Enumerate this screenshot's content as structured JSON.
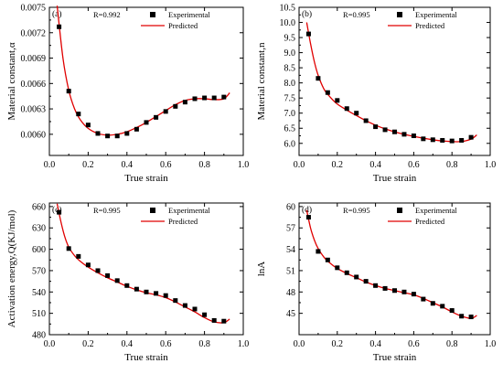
{
  "chart_data": [
    {
      "id": "a",
      "type": "scatter",
      "panel_label": "(a)",
      "r_text": "R=0.992",
      "xlabel": "True strain",
      "ylabel": "Material constant,α",
      "xlim": [
        0.0,
        1.0
      ],
      "ylim": [
        0.00575,
        0.0075
      ],
      "xticks": [
        "0.0",
        "0.2",
        "0.4",
        "0.6",
        "0.8",
        "1.0"
      ],
      "xtick_values": [
        0.0,
        0.2,
        0.4,
        0.6,
        0.8,
        1.0
      ],
      "yticks": [
        "0.0060",
        "0.0063",
        "0.0066",
        "0.0069",
        "0.0072",
        "0.0075"
      ],
      "ytick_values": [
        0.006,
        0.0063,
        0.0066,
        0.0069,
        0.0072,
        0.0075
      ],
      "legend": {
        "experimental": "Experimental",
        "predicted": "Predicted",
        "position": "top-right"
      },
      "series": [
        {
          "name": "Experimental",
          "x": [
            0.05,
            0.1,
            0.15,
            0.2,
            0.25,
            0.3,
            0.35,
            0.4,
            0.45,
            0.5,
            0.55,
            0.6,
            0.65,
            0.7,
            0.75,
            0.8,
            0.85,
            0.9
          ],
          "y": [
            0.00727,
            0.00651,
            0.00624,
            0.00611,
            0.00601,
            0.00598,
            0.00598,
            0.00601,
            0.00606,
            0.00614,
            0.0062,
            0.00627,
            0.00633,
            0.00638,
            0.00642,
            0.00643,
            0.00643,
            0.00644
          ]
        },
        {
          "name": "Predicted",
          "x": [
            0.04,
            0.07,
            0.1,
            0.13,
            0.16,
            0.2,
            0.25,
            0.3,
            0.35,
            0.4,
            0.45,
            0.5,
            0.55,
            0.6,
            0.65,
            0.7,
            0.75,
            0.8,
            0.85,
            0.9,
            0.93
          ],
          "y": [
            0.00752,
            0.0069,
            0.00652,
            0.0063,
            0.00617,
            0.00607,
            0.00601,
            0.00599,
            0.006,
            0.00603,
            0.00608,
            0.00614,
            0.00621,
            0.00628,
            0.00635,
            0.0064,
            0.00642,
            0.00642,
            0.00641,
            0.00642,
            0.00649
          ]
        }
      ]
    },
    {
      "id": "b",
      "type": "scatter",
      "panel_label": "(b)",
      "r_text": "R=0.995",
      "xlabel": "True strain",
      "ylabel": "Material constant,n",
      "xlim": [
        0.0,
        1.0
      ],
      "ylim": [
        5.6,
        10.5
      ],
      "xticks": [
        "0.0",
        "0.2",
        "0.4",
        "0.6",
        "0.8",
        "1.0"
      ],
      "xtick_values": [
        0.0,
        0.2,
        0.4,
        0.6,
        0.8,
        1.0
      ],
      "yticks": [
        "6.0",
        "6.5",
        "7.0",
        "7.5",
        "8.0",
        "8.5",
        "9.0",
        "9.5",
        "10.0",
        "10.5"
      ],
      "ytick_values": [
        6.0,
        6.5,
        7.0,
        7.5,
        8.0,
        8.5,
        9.0,
        9.5,
        10.0,
        10.5
      ],
      "legend": {
        "experimental": "Experimental",
        "predicted": "Predicted",
        "position": "top-right"
      },
      "series": [
        {
          "name": "Experimental",
          "x": [
            0.05,
            0.1,
            0.15,
            0.2,
            0.25,
            0.3,
            0.35,
            0.4,
            0.45,
            0.5,
            0.55,
            0.6,
            0.65,
            0.7,
            0.75,
            0.8,
            0.85,
            0.9
          ],
          "y": [
            9.62,
            8.15,
            7.68,
            7.42,
            7.15,
            7.0,
            6.75,
            6.55,
            6.45,
            6.38,
            6.3,
            6.25,
            6.15,
            6.12,
            6.1,
            6.08,
            6.1,
            6.2
          ]
        },
        {
          "name": "Predicted",
          "x": [
            0.04,
            0.06,
            0.08,
            0.1,
            0.13,
            0.16,
            0.2,
            0.25,
            0.3,
            0.35,
            0.4,
            0.45,
            0.5,
            0.55,
            0.6,
            0.65,
            0.7,
            0.75,
            0.8,
            0.85,
            0.9,
            0.93
          ],
          "y": [
            10.0,
            9.3,
            8.7,
            8.25,
            7.8,
            7.55,
            7.3,
            7.1,
            6.92,
            6.75,
            6.6,
            6.48,
            6.38,
            6.3,
            6.23,
            6.17,
            6.12,
            6.08,
            6.06,
            6.06,
            6.14,
            6.28
          ]
        }
      ]
    },
    {
      "id": "c",
      "type": "scatter",
      "panel_label": "(c)",
      "r_text": "R=0.995",
      "xlabel": "True strain",
      "ylabel": "Activation energy,Q(KJ/mol)",
      "xlim": [
        0.0,
        1.0
      ],
      "ylim": [
        480,
        665
      ],
      "xticks": [
        "0.0",
        "0.2",
        "0.4",
        "0.6",
        "0.8",
        "1.0"
      ],
      "xtick_values": [
        0.0,
        0.2,
        0.4,
        0.6,
        0.8,
        1.0
      ],
      "yticks": [
        "480",
        "510",
        "540",
        "570",
        "600",
        "630",
        "660"
      ],
      "ytick_values": [
        480,
        510,
        540,
        570,
        600,
        630,
        660
      ],
      "legend": {
        "experimental": "Experimental",
        "predicted": "Predicted",
        "position": "top-right"
      },
      "series": [
        {
          "name": "Experimental",
          "x": [
            0.05,
            0.1,
            0.15,
            0.2,
            0.25,
            0.3,
            0.35,
            0.4,
            0.45,
            0.5,
            0.55,
            0.6,
            0.65,
            0.7,
            0.75,
            0.8,
            0.85,
            0.9
          ],
          "y": [
            652,
            601,
            590,
            578,
            570,
            563,
            556,
            549,
            544,
            540,
            538,
            535,
            528,
            521,
            516,
            508,
            500,
            499
          ]
        },
        {
          "name": "Predicted",
          "x": [
            0.04,
            0.06,
            0.08,
            0.1,
            0.13,
            0.16,
            0.2,
            0.25,
            0.3,
            0.35,
            0.4,
            0.45,
            0.5,
            0.55,
            0.6,
            0.65,
            0.7,
            0.75,
            0.8,
            0.85,
            0.9,
            0.93
          ],
          "y": [
            664,
            638,
            617,
            603,
            591,
            583,
            575,
            567,
            560,
            554,
            548,
            543,
            539,
            536,
            532,
            526,
            519,
            512,
            504,
            498,
            497,
            502
          ]
        }
      ]
    },
    {
      "id": "d",
      "type": "scatter",
      "panel_label": "(d)",
      "r_text": "R=0.995",
      "xlabel": "True strain",
      "ylabel": "lnA",
      "xlim": [
        0.0,
        1.0
      ],
      "ylim": [
        42,
        60.5
      ],
      "xticks": [
        "0.0",
        "0.2",
        "0.4",
        "0.6",
        "0.8",
        "1.0"
      ],
      "xtick_values": [
        0.0,
        0.2,
        0.4,
        0.6,
        0.8,
        1.0
      ],
      "yticks": [
        "45",
        "48",
        "51",
        "54",
        "57",
        "60"
      ],
      "ytick_values": [
        45,
        48,
        51,
        54,
        57,
        60
      ],
      "legend": {
        "experimental": "Experimental",
        "predicted": "Predicted",
        "position": "top-right"
      },
      "series": [
        {
          "name": "Experimental",
          "x": [
            0.05,
            0.1,
            0.15,
            0.2,
            0.25,
            0.3,
            0.35,
            0.4,
            0.45,
            0.5,
            0.55,
            0.6,
            0.65,
            0.7,
            0.75,
            0.8,
            0.85,
            0.9
          ],
          "y": [
            58.5,
            53.7,
            52.5,
            51.4,
            50.7,
            50.1,
            49.5,
            48.9,
            48.5,
            48.2,
            48.0,
            47.7,
            47.0,
            46.4,
            46.0,
            45.4,
            44.6,
            44.5
          ]
        },
        {
          "name": "Predicted",
          "x": [
            0.04,
            0.06,
            0.08,
            0.1,
            0.13,
            0.16,
            0.2,
            0.25,
            0.3,
            0.35,
            0.4,
            0.45,
            0.5,
            0.55,
            0.6,
            0.65,
            0.7,
            0.75,
            0.8,
            0.85,
            0.9,
            0.93
          ],
          "y": [
            59.5,
            57.0,
            55.3,
            54.1,
            52.9,
            52.1,
            51.3,
            50.6,
            50.0,
            49.4,
            48.9,
            48.5,
            48.2,
            47.9,
            47.6,
            47.1,
            46.5,
            45.9,
            45.2,
            44.6,
            44.3,
            44.7
          ]
        }
      ]
    }
  ]
}
